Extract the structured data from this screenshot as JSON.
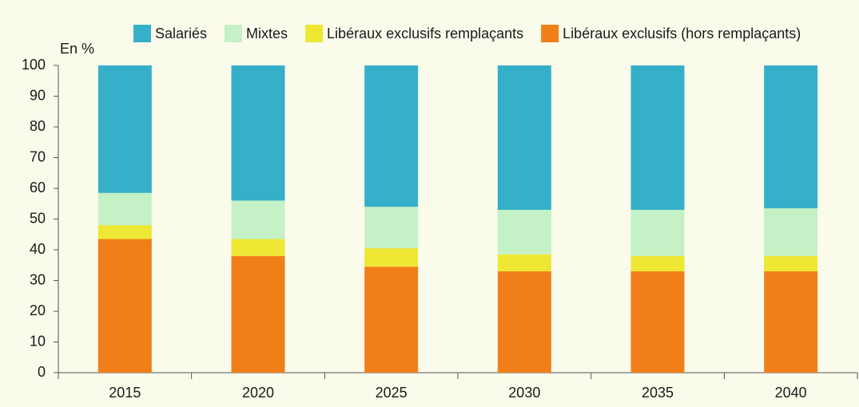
{
  "chart_data": {
    "type": "stacked_bar",
    "y_label": "En %",
    "categories": [
      "2015",
      "2020",
      "2025",
      "2030",
      "2035",
      "2040"
    ],
    "series": [
      {
        "name": "Salariés",
        "color": "#35b0c8",
        "values": [
          41.5,
          44,
          46,
          47,
          47,
          46.5
        ]
      },
      {
        "name": "Mixtes",
        "color": "#c4f1c6",
        "values": [
          10.5,
          12.5,
          13.5,
          14.5,
          15,
          15.5
        ]
      },
      {
        "name": "Libéraux exclusifs remplaçants",
        "color": "#eee733",
        "values": [
          4.5,
          5.5,
          6,
          5.5,
          5,
          5
        ]
      },
      {
        "name": "Libéraux exclusifs (hors remplaçants)",
        "color": "#f07f1a",
        "values": [
          43.5,
          38,
          34.5,
          33,
          33,
          33
        ]
      }
    ],
    "ylim": [
      0,
      100
    ],
    "yticks": [
      0,
      10,
      20,
      30,
      40,
      50,
      60,
      70,
      80,
      90,
      100
    ],
    "grid": false,
    "legend": "top"
  }
}
